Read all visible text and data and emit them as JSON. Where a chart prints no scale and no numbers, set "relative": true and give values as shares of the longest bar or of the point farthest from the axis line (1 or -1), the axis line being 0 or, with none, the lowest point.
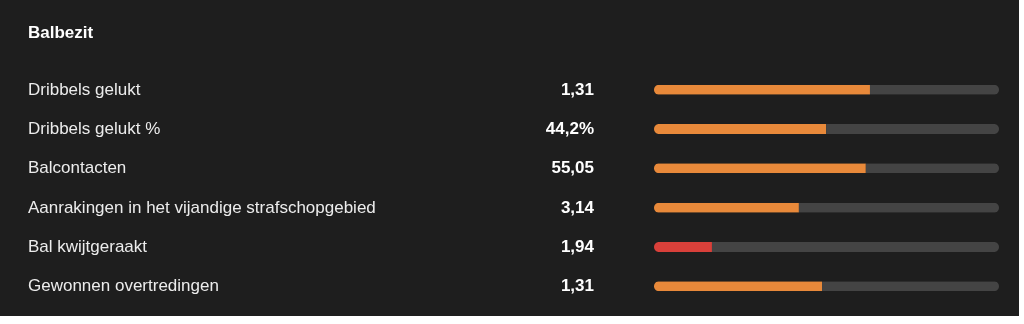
{
  "chart_data": {
    "type": "bar",
    "title": "Balbezit",
    "orientation": "horizontal",
    "stacked": true,
    "relative": true,
    "categories": [
      "Dribbels gelukt",
      "Dribbels gelukt %",
      "Balcontacten",
      "Aanrakingen in het vijandige strafschopgebied",
      "Bal kwijtgeraakt",
      "Gewonnen overtredingen"
    ],
    "series": [
      {
        "colors": [
          "#e8893a",
          "#e8893a",
          "#e8893a",
          "#e8893a",
          "#d9403a",
          "#e8893a"
        ],
        "values": [
          0.626,
          0.499,
          0.614,
          0.42,
          0.168,
          0.487
        ]
      },
      {
        "color": "#444444",
        "values": [
          0.374,
          0.501,
          0.386,
          0.58,
          0.832,
          0.513
        ]
      }
    ],
    "annotations": [
      "1,31",
      "44,2%",
      "55,05",
      "3,14",
      "1,94",
      "1,31"
    ]
  }
}
